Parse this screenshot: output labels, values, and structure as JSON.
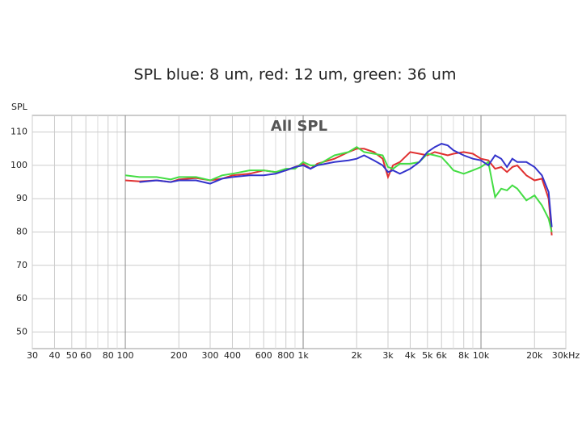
{
  "chart_data": {
    "type": "line",
    "title": "SPL  blue: 8 um, red: 12 um, green: 36 um",
    "subtitle": "All SPL",
    "y_label": "SPL",
    "xscale": "log",
    "grid": true,
    "xlim": [
      30,
      30000
    ],
    "ylim": [
      45,
      115
    ],
    "yticks": [
      50,
      60,
      70,
      80,
      90,
      100,
      110
    ],
    "xticks": [
      30,
      40,
      50,
      60,
      80,
      100,
      200,
      300,
      400,
      600,
      800,
      {
        "value": 1000,
        "label": "1k"
      },
      {
        "value": 2000,
        "label": "2k"
      },
      {
        "value": 3000,
        "label": "3k"
      },
      {
        "value": 4000,
        "label": "4k"
      },
      {
        "value": 5000,
        "label": "5k"
      },
      {
        "value": 6000,
        "label": "6k"
      },
      {
        "value": 8000,
        "label": "8k"
      },
      {
        "value": 10000,
        "label": "10k"
      },
      {
        "value": 20000,
        "label": "20k"
      },
      {
        "value": 30000,
        "label": "30kHz"
      }
    ],
    "xminor": [
      70,
      90,
      500,
      700,
      900,
      7000,
      9000
    ],
    "x": [
      100,
      120,
      150,
      180,
      200,
      250,
      300,
      350,
      400,
      500,
      600,
      700,
      800,
      900,
      1000,
      1100,
      1200,
      1500,
      1800,
      2000,
      2200,
      2500,
      2800,
      3000,
      3200,
      3500,
      4000,
      4500,
      5000,
      5500,
      6000,
      6500,
      7000,
      8000,
      9000,
      10000,
      11000,
      12000,
      13000,
      14000,
      15000,
      16000,
      18000,
      20000,
      22000,
      24000,
      25000
    ],
    "series": [
      {
        "color": "#e03030",
        "values": [
          95.5,
          95.2,
          95.5,
          95,
          95.8,
          96.2,
          95.5,
          96,
          97,
          97.5,
          98.5,
          98,
          98.5,
          99.5,
          100.5,
          99,
          100.5,
          102,
          104,
          105,
          105,
          104,
          102,
          96.5,
          100,
          101,
          104,
          103.5,
          103,
          104,
          103.5,
          103,
          103.5,
          104,
          103.5,
          102,
          101.5,
          99,
          99.5,
          98,
          99.5,
          100,
          97,
          95.5,
          96,
          90,
          79
        ]
      },
      {
        "color": "#44dd44",
        "values": [
          97,
          96.5,
          96.5,
          95.8,
          96.5,
          96.5,
          95.5,
          97,
          97.5,
          98.5,
          98.5,
          98,
          99,
          99,
          101,
          100,
          100,
          103,
          104,
          105.5,
          104,
          103.5,
          103,
          99.5,
          99,
          100.5,
          100.5,
          101,
          103.5,
          103,
          102.5,
          100.5,
          98.5,
          97.5,
          98.5,
          99.5,
          101,
          90.5,
          93,
          92.5,
          94,
          93,
          89.5,
          91,
          88,
          84,
          80
        ]
      },
      {
        "color": "#3333cc",
        "values": [
          null,
          95,
          95.5,
          95,
          95.5,
          95.5,
          94.5,
          96,
          96.5,
          97,
          97,
          97.5,
          98.5,
          99.5,
          100,
          99,
          100,
          101,
          101.5,
          102,
          103,
          101.5,
          100,
          98,
          98.5,
          97.5,
          99,
          101,
          104,
          105.5,
          106.5,
          106,
          104.5,
          103,
          102,
          101.5,
          100,
          103,
          102,
          99.5,
          102,
          101,
          101,
          99.5,
          97,
          92,
          81.5
        ]
      }
    ]
  }
}
